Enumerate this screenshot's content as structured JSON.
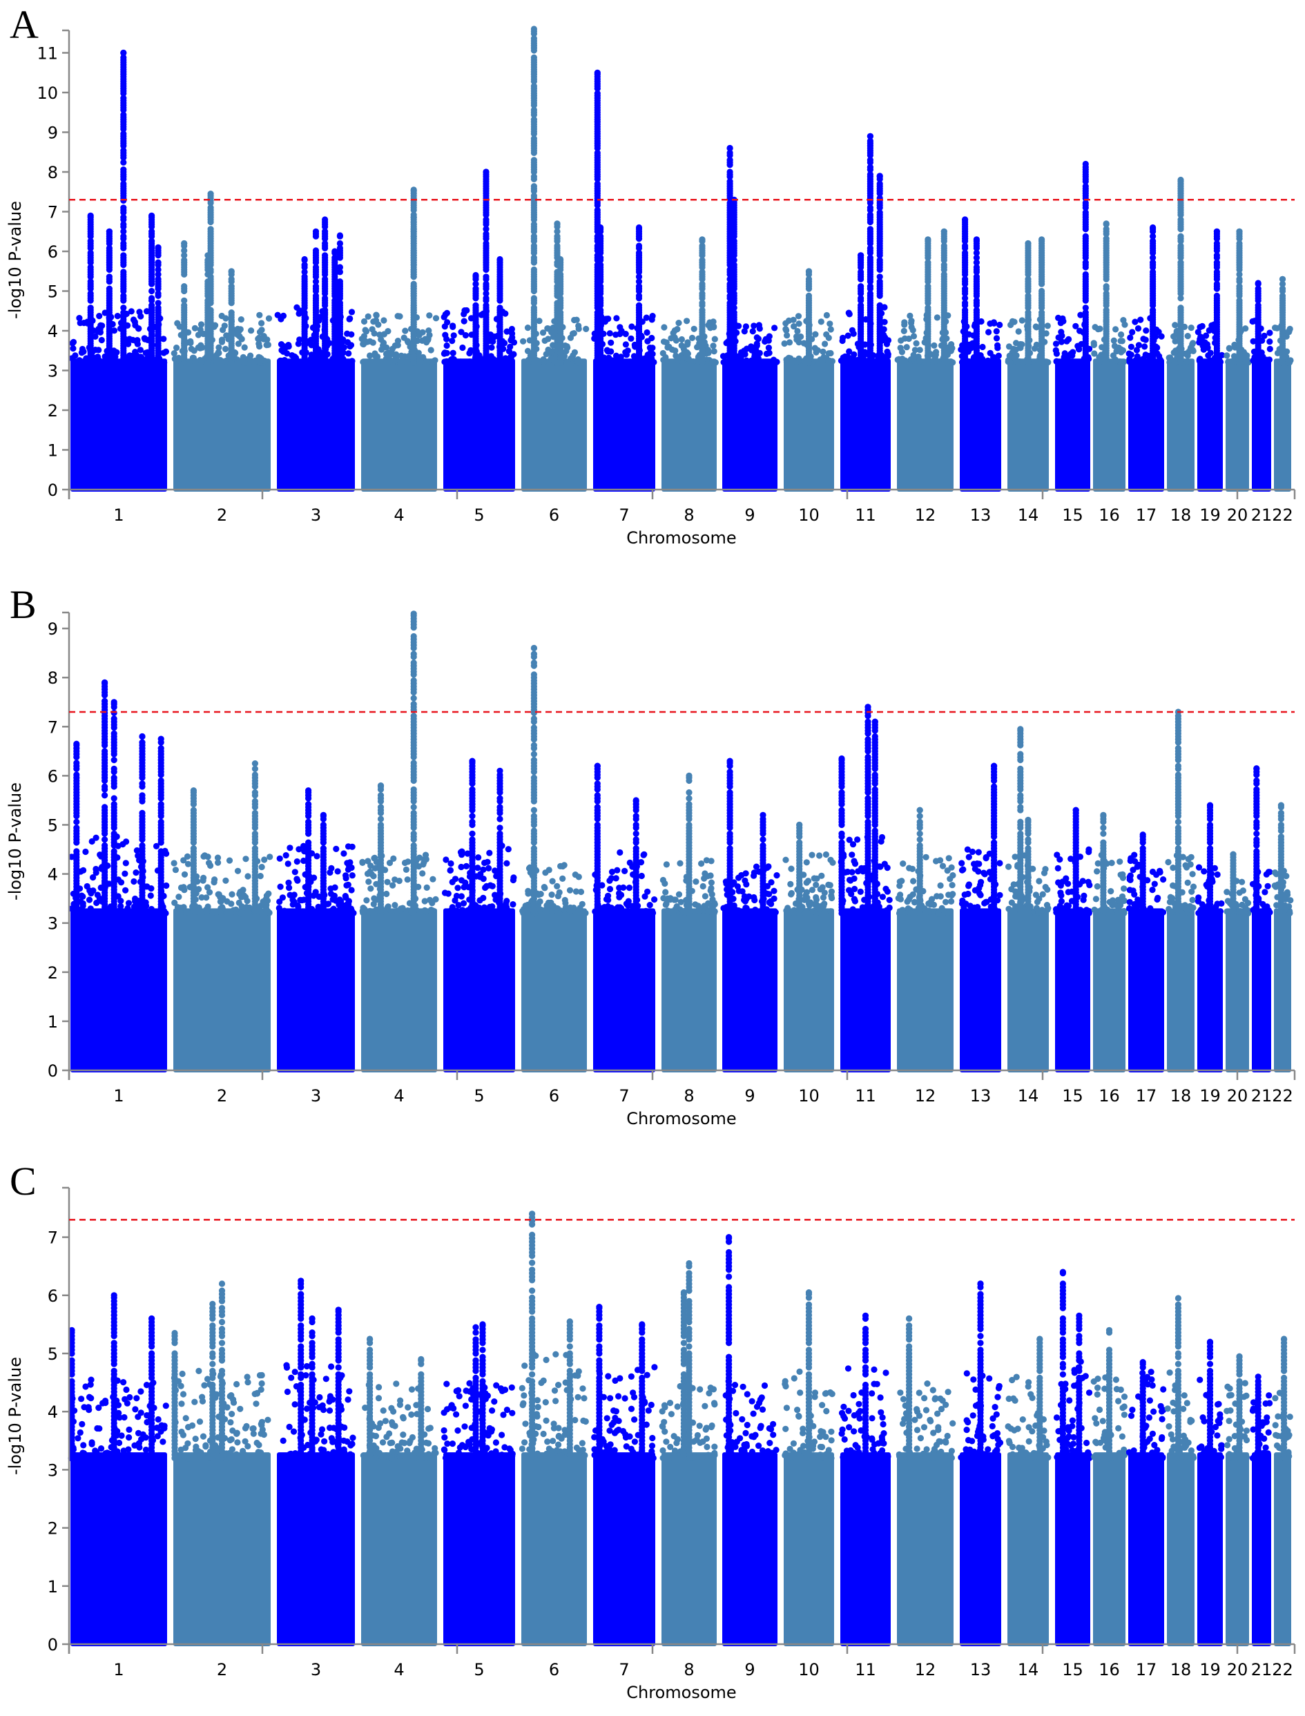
{
  "chart_data": [
    {
      "type": "scatter",
      "subtype": "manhattan",
      "panel": "A",
      "xlabel": "Chromosome",
      "ylabel": "-log10 P-value",
      "ylim": [
        0,
        11.7
      ],
      "yticks": [
        0,
        1,
        2,
        3,
        4,
        5,
        6,
        7,
        8,
        9,
        10,
        11
      ],
      "threshold": 7.3,
      "threshold_color": "#e8141c",
      "colors": [
        "#0000ff",
        "#4682b4"
      ],
      "categories": [
        "1",
        "2",
        "3",
        "4",
        "5",
        "6",
        "7",
        "8",
        "9",
        "10",
        "11",
        "12",
        "13",
        "14",
        "15",
        "16",
        "17",
        "18",
        "19",
        "20",
        "21",
        "22"
      ],
      "background_max": [
        4.5,
        4.4,
        4.6,
        4.4,
        4.6,
        4.3,
        4.4,
        4.3,
        4.2,
        4.4,
        4.6,
        4.4,
        4.3,
        4.3,
        4.4,
        4.3,
        4.4,
        4.2,
        4.3,
        4.2,
        4.3,
        4.2
      ],
      "peaks": [
        {
          "chr": "1",
          "pos": 0.2,
          "value": 6.9
        },
        {
          "chr": "1",
          "pos": 0.4,
          "value": 6.5
        },
        {
          "chr": "1",
          "pos": 0.55,
          "value": 11.0
        },
        {
          "chr": "1",
          "pos": 0.85,
          "value": 6.9
        },
        {
          "chr": "1",
          "pos": 0.92,
          "value": 6.1
        },
        {
          "chr": "2",
          "pos": 0.1,
          "value": 6.2
        },
        {
          "chr": "2",
          "pos": 0.38,
          "value": 7.45
        },
        {
          "chr": "2",
          "pos": 0.35,
          "value": 5.9
        },
        {
          "chr": "2",
          "pos": 0.6,
          "value": 5.5
        },
        {
          "chr": "3",
          "pos": 0.35,
          "value": 5.8
        },
        {
          "chr": "3",
          "pos": 0.5,
          "value": 6.5
        },
        {
          "chr": "3",
          "pos": 0.62,
          "value": 6.8
        },
        {
          "chr": "3",
          "pos": 0.75,
          "value": 6.0
        },
        {
          "chr": "3",
          "pos": 0.82,
          "value": 6.4
        },
        {
          "chr": "4",
          "pos": 0.7,
          "value": 7.55
        },
        {
          "chr": "4",
          "pos": 0.7,
          "value": 6.85
        },
        {
          "chr": "5",
          "pos": 0.6,
          "value": 8.0
        },
        {
          "chr": "5",
          "pos": 0.8,
          "value": 5.8
        },
        {
          "chr": "5",
          "pos": 0.45,
          "value": 5.4
        },
        {
          "chr": "6",
          "pos": 0.18,
          "value": 11.6
        },
        {
          "chr": "6",
          "pos": 0.55,
          "value": 6.7
        },
        {
          "chr": "6",
          "pos": 0.6,
          "value": 5.8
        },
        {
          "chr": "7",
          "pos": 0.05,
          "value": 10.5
        },
        {
          "chr": "7",
          "pos": 0.75,
          "value": 6.6
        },
        {
          "chr": "7",
          "pos": 0.1,
          "value": 6.6
        },
        {
          "chr": "8",
          "pos": 0.75,
          "value": 6.3
        },
        {
          "chr": "9",
          "pos": 0.12,
          "value": 8.6
        },
        {
          "chr": "9",
          "pos": 0.2,
          "value": 7.3
        },
        {
          "chr": "10",
          "pos": 0.5,
          "value": 5.5
        },
        {
          "chr": "11",
          "pos": 0.6,
          "value": 8.9
        },
        {
          "chr": "11",
          "pos": 0.8,
          "value": 7.9
        },
        {
          "chr": "11",
          "pos": 0.4,
          "value": 5.9
        },
        {
          "chr": "12",
          "pos": 0.55,
          "value": 6.3
        },
        {
          "chr": "12",
          "pos": 0.85,
          "value": 6.5
        },
        {
          "chr": "13",
          "pos": 0.1,
          "value": 6.8
        },
        {
          "chr": "13",
          "pos": 0.4,
          "value": 6.3
        },
        {
          "chr": "14",
          "pos": 0.5,
          "value": 6.2
        },
        {
          "chr": "14",
          "pos": 0.85,
          "value": 6.3
        },
        {
          "chr": "15",
          "pos": 0.9,
          "value": 8.2
        },
        {
          "chr": "16",
          "pos": 0.4,
          "value": 6.7
        },
        {
          "chr": "17",
          "pos": 0.7,
          "value": 6.6
        },
        {
          "chr": "18",
          "pos": 0.5,
          "value": 7.8
        },
        {
          "chr": "19",
          "pos": 0.8,
          "value": 6.5
        },
        {
          "chr": "20",
          "pos": 0.6,
          "value": 6.5
        },
        {
          "chr": "21",
          "pos": 0.3,
          "value": 5.2
        },
        {
          "chr": "22",
          "pos": 0.5,
          "value": 5.3
        }
      ]
    },
    {
      "type": "scatter",
      "subtype": "manhattan",
      "panel": "B",
      "xlabel": "Chromosome",
      "ylabel": "-log10 P-value",
      "ylim": [
        0,
        9.35
      ],
      "yticks": [
        0,
        1,
        2,
        3,
        4,
        5,
        6,
        7,
        8,
        9
      ],
      "threshold": 7.3,
      "threshold_color": "#e8141c",
      "colors": [
        "#0000ff",
        "#4682b4"
      ],
      "categories": [
        "1",
        "2",
        "3",
        "4",
        "5",
        "6",
        "7",
        "8",
        "9",
        "10",
        "11",
        "12",
        "13",
        "14",
        "15",
        "16",
        "17",
        "18",
        "19",
        "20",
        "21",
        "22"
      ],
      "background_max": [
        4.8,
        4.4,
        4.6,
        4.4,
        4.6,
        4.3,
        4.5,
        4.3,
        4.2,
        4.4,
        4.8,
        4.4,
        4.5,
        4.4,
        4.5,
        4.4,
        4.6,
        4.4,
        4.3,
        4.0,
        4.1,
        4.5
      ],
      "peaks": [
        {
          "chr": "1",
          "pos": 0.05,
          "value": 6.65
        },
        {
          "chr": "1",
          "pos": 0.35,
          "value": 7.9
        },
        {
          "chr": "1",
          "pos": 0.45,
          "value": 7.5
        },
        {
          "chr": "1",
          "pos": 0.75,
          "value": 6.8
        },
        {
          "chr": "1",
          "pos": 0.95,
          "value": 6.75
        },
        {
          "chr": "2",
          "pos": 0.85,
          "value": 6.25
        },
        {
          "chr": "2",
          "pos": 0.2,
          "value": 5.7
        },
        {
          "chr": "3",
          "pos": 0.4,
          "value": 5.7
        },
        {
          "chr": "3",
          "pos": 0.6,
          "value": 5.2
        },
        {
          "chr": "4",
          "pos": 0.25,
          "value": 5.8
        },
        {
          "chr": "4",
          "pos": 0.7,
          "value": 9.3
        },
        {
          "chr": "5",
          "pos": 0.4,
          "value": 6.3
        },
        {
          "chr": "5",
          "pos": 0.8,
          "value": 6.1
        },
        {
          "chr": "6",
          "pos": 0.18,
          "value": 8.6
        },
        {
          "chr": "7",
          "pos": 0.05,
          "value": 6.2
        },
        {
          "chr": "7",
          "pos": 0.7,
          "value": 5.5
        },
        {
          "chr": "8",
          "pos": 0.5,
          "value": 6.0
        },
        {
          "chr": "9",
          "pos": 0.12,
          "value": 6.3
        },
        {
          "chr": "9",
          "pos": 0.75,
          "value": 5.2
        },
        {
          "chr": "10",
          "pos": 0.3,
          "value": 5.0
        },
        {
          "chr": "11",
          "pos": 0.0,
          "value": 6.35
        },
        {
          "chr": "11",
          "pos": 0.55,
          "value": 7.4
        },
        {
          "chr": "11",
          "pos": 0.7,
          "value": 7.1
        },
        {
          "chr": "12",
          "pos": 0.4,
          "value": 5.3
        },
        {
          "chr": "13",
          "pos": 0.85,
          "value": 6.2
        },
        {
          "chr": "14",
          "pos": 0.3,
          "value": 6.95
        },
        {
          "chr": "14",
          "pos": 0.5,
          "value": 5.1
        },
        {
          "chr": "15",
          "pos": 0.6,
          "value": 5.3
        },
        {
          "chr": "16",
          "pos": 0.3,
          "value": 5.2
        },
        {
          "chr": "17",
          "pos": 0.4,
          "value": 4.8
        },
        {
          "chr": "18",
          "pos": 0.4,
          "value": 7.3
        },
        {
          "chr": "19",
          "pos": 0.5,
          "value": 5.4
        },
        {
          "chr": "20",
          "pos": 0.3,
          "value": 4.4
        },
        {
          "chr": "21",
          "pos": 0.2,
          "value": 6.15
        },
        {
          "chr": "22",
          "pos": 0.4,
          "value": 5.4
        }
      ]
    },
    {
      "type": "scatter",
      "subtype": "manhattan",
      "panel": "C",
      "xlabel": "Chromosome",
      "ylabel": "-log10 P-value",
      "ylim": [
        0,
        7.4
      ],
      "yticks": [
        0,
        1,
        2,
        3,
        4,
        5,
        6,
        7
      ],
      "threshold": 7.3,
      "threshold_color": "#e8141c",
      "colors": [
        "#0000ff",
        "#4682b4"
      ],
      "categories": [
        "1",
        "2",
        "3",
        "4",
        "5",
        "6",
        "7",
        "8",
        "9",
        "10",
        "11",
        "12",
        "13",
        "14",
        "15",
        "16",
        "17",
        "18",
        "19",
        "20",
        "21",
        "22"
      ],
      "background_max": [
        4.6,
        4.7,
        4.8,
        4.5,
        4.6,
        5.0,
        4.8,
        4.5,
        4.6,
        4.7,
        4.8,
        4.5,
        4.7,
        4.6,
        4.9,
        4.6,
        4.7,
        4.7,
        4.6,
        4.5,
        4.5,
        4.4
      ],
      "peaks": [
        {
          "chr": "1",
          "pos": 0.0,
          "value": 5.4
        },
        {
          "chr": "1",
          "pos": 0.45,
          "value": 6.0
        },
        {
          "chr": "1",
          "pos": 0.85,
          "value": 5.6
        },
        {
          "chr": "2",
          "pos": 0.0,
          "value": 5.35
        },
        {
          "chr": "2",
          "pos": 0.4,
          "value": 5.85
        },
        {
          "chr": "2",
          "pos": 0.5,
          "value": 6.2
        },
        {
          "chr": "3",
          "pos": 0.3,
          "value": 6.25
        },
        {
          "chr": "3",
          "pos": 0.45,
          "value": 5.6
        },
        {
          "chr": "3",
          "pos": 0.8,
          "value": 5.75
        },
        {
          "chr": "4",
          "pos": 0.1,
          "value": 5.25
        },
        {
          "chr": "4",
          "pos": 0.8,
          "value": 4.9
        },
        {
          "chr": "5",
          "pos": 0.45,
          "value": 5.45
        },
        {
          "chr": "5",
          "pos": 0.55,
          "value": 5.5
        },
        {
          "chr": "6",
          "pos": 0.15,
          "value": 7.4
        },
        {
          "chr": "6",
          "pos": 0.75,
          "value": 5.55
        },
        {
          "chr": "7",
          "pos": 0.08,
          "value": 5.8
        },
        {
          "chr": "7",
          "pos": 0.8,
          "value": 5.5
        },
        {
          "chr": "8",
          "pos": 0.5,
          "value": 6.55
        },
        {
          "chr": "8",
          "pos": 0.4,
          "value": 6.05
        },
        {
          "chr": "9",
          "pos": 0.1,
          "value": 7.0
        },
        {
          "chr": "10",
          "pos": 0.5,
          "value": 6.05
        },
        {
          "chr": "11",
          "pos": 0.5,
          "value": 5.65
        },
        {
          "chr": "12",
          "pos": 0.2,
          "value": 5.6
        },
        {
          "chr": "13",
          "pos": 0.5,
          "value": 6.2
        },
        {
          "chr": "14",
          "pos": 0.8,
          "value": 5.25
        },
        {
          "chr": "15",
          "pos": 0.2,
          "value": 6.4
        },
        {
          "chr": "15",
          "pos": 0.7,
          "value": 5.65
        },
        {
          "chr": "16",
          "pos": 0.5,
          "value": 5.4
        },
        {
          "chr": "17",
          "pos": 0.4,
          "value": 4.85
        },
        {
          "chr": "18",
          "pos": 0.4,
          "value": 5.95
        },
        {
          "chr": "19",
          "pos": 0.5,
          "value": 5.2
        },
        {
          "chr": "20",
          "pos": 0.6,
          "value": 4.95
        },
        {
          "chr": "21",
          "pos": 0.3,
          "value": 4.6
        },
        {
          "chr": "22",
          "pos": 0.6,
          "value": 5.25
        }
      ]
    }
  ],
  "panels": [
    {
      "letter": "A",
      "xlabel": "Chromosome",
      "ylabel": "-log10 P-value"
    },
    {
      "letter": "B",
      "xlabel": "Chromosome",
      "ylabel": "-log10 P-value"
    },
    {
      "letter": "C",
      "xlabel": "Chromosome",
      "ylabel": "-log10 P-value"
    }
  ]
}
